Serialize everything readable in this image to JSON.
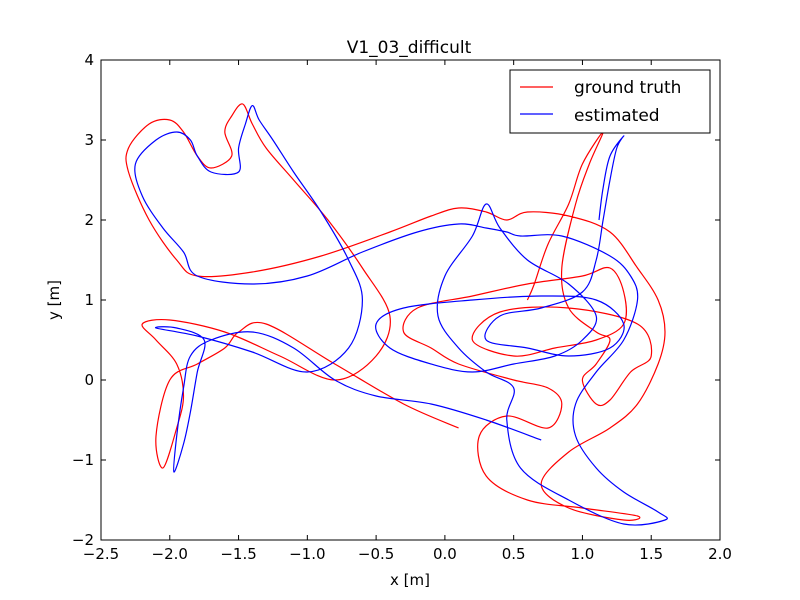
{
  "chart_data": {
    "type": "line",
    "title": "V1_03_difficult",
    "xlabel": "x [m]",
    "ylabel": "y [m]",
    "xlim": [
      -2.5,
      2.0
    ],
    "ylim": [
      -2.0,
      4.0
    ],
    "x_ticks": [
      -2.5,
      -2.0,
      -1.5,
      -1.0,
      -0.5,
      0.0,
      0.5,
      1.0,
      1.5,
      2.0
    ],
    "x_tick_labels": [
      "−2.5",
      "−2.0",
      "−1.5",
      "−1.0",
      "−0.5",
      "0.0",
      "0.5",
      "1.0",
      "1.5",
      "2.0"
    ],
    "y_ticks": [
      -2,
      -1,
      0,
      1,
      2,
      3,
      4
    ],
    "y_tick_labels": [
      "−2",
      "−1",
      "0",
      "1",
      "2",
      "3",
      "4"
    ],
    "grid": false,
    "legend_position": "upper right",
    "series": [
      {
        "name": "ground truth",
        "color": "#ff0000",
        "points": [
          [
            0.1,
            -0.6
          ],
          [
            -0.3,
            -0.3
          ],
          [
            -0.8,
            0.2
          ],
          [
            -1.3,
            0.7
          ],
          [
            -1.5,
            0.6
          ],
          [
            -1.6,
            0.4
          ],
          [
            -1.8,
            0.2
          ],
          [
            -2.0,
            0.0
          ],
          [
            -2.1,
            -0.7
          ],
          [
            -2.05,
            -1.1
          ],
          [
            -1.95,
            -0.6
          ],
          [
            -1.9,
            -0.2
          ],
          [
            -1.95,
            0.2
          ],
          [
            -2.1,
            0.5
          ],
          [
            -2.2,
            0.7
          ],
          [
            -2.0,
            0.75
          ],
          [
            -1.6,
            0.6
          ],
          [
            -1.2,
            0.3
          ],
          [
            -0.8,
            0.0
          ],
          [
            -0.5,
            0.3
          ],
          [
            -0.4,
            0.8
          ],
          [
            -0.6,
            1.4
          ],
          [
            -0.85,
            2.0
          ],
          [
            -1.1,
            2.5
          ],
          [
            -1.3,
            2.9
          ],
          [
            -1.4,
            3.2
          ],
          [
            -1.47,
            3.45
          ],
          [
            -1.55,
            3.3
          ],
          [
            -1.6,
            3.1
          ],
          [
            -1.55,
            2.8
          ],
          [
            -1.7,
            2.65
          ],
          [
            -1.8,
            2.8
          ],
          [
            -1.9,
            3.1
          ],
          [
            -2.0,
            3.25
          ],
          [
            -2.15,
            3.2
          ],
          [
            -2.3,
            2.9
          ],
          [
            -2.3,
            2.6
          ],
          [
            -2.15,
            2.0
          ],
          [
            -1.95,
            1.5
          ],
          [
            -1.8,
            1.3
          ],
          [
            -1.4,
            1.35
          ],
          [
            -0.9,
            1.55
          ],
          [
            -0.4,
            1.85
          ],
          [
            -0.1,
            2.05
          ],
          [
            0.1,
            2.15
          ],
          [
            0.3,
            2.1
          ],
          [
            0.45,
            2.0
          ],
          [
            0.6,
            2.1
          ],
          [
            0.9,
            2.05
          ],
          [
            1.2,
            1.85
          ],
          [
            1.4,
            1.4
          ],
          [
            1.55,
            1.0
          ],
          [
            1.6,
            0.6
          ],
          [
            1.55,
            0.2
          ],
          [
            1.4,
            -0.3
          ],
          [
            1.2,
            -0.6
          ],
          [
            0.9,
            -0.9
          ],
          [
            0.7,
            -1.3
          ],
          [
            0.9,
            -1.6
          ],
          [
            1.3,
            -1.75
          ],
          [
            1.4,
            -1.7
          ],
          [
            1.0,
            -1.6
          ],
          [
            0.6,
            -1.5
          ],
          [
            0.3,
            -1.2
          ],
          [
            0.25,
            -0.7
          ],
          [
            0.45,
            -0.45
          ],
          [
            0.75,
            -0.6
          ],
          [
            0.85,
            -0.3
          ],
          [
            0.75,
            -0.1
          ],
          [
            0.5,
            0.0
          ],
          [
            0.1,
            0.2
          ],
          [
            -0.1,
            0.4
          ],
          [
            -0.3,
            0.6
          ],
          [
            -0.2,
            0.9
          ],
          [
            0.2,
            1.05
          ],
          [
            0.6,
            1.2
          ],
          [
            1.0,
            1.3
          ],
          [
            1.2,
            1.4
          ],
          [
            1.3,
            1.1
          ],
          [
            1.3,
            0.7
          ],
          [
            1.1,
            0.5
          ],
          [
            0.8,
            0.4
          ],
          [
            0.5,
            0.3
          ],
          [
            0.2,
            0.5
          ],
          [
            0.4,
            0.85
          ],
          [
            0.9,
            0.9
          ],
          [
            1.4,
            0.7
          ],
          [
            1.5,
            0.3
          ],
          [
            1.35,
            0.1
          ],
          [
            1.2,
            -0.25
          ],
          [
            1.1,
            -0.3
          ],
          [
            1.0,
            0.0
          ],
          [
            1.1,
            0.2
          ],
          [
            1.2,
            0.5
          ],
          [
            1.1,
            0.6
          ],
          [
            0.9,
            0.9
          ],
          [
            0.85,
            1.4
          ],
          [
            0.95,
            2.2
          ],
          [
            1.05,
            2.7
          ],
          [
            1.15,
            3.1
          ],
          [
            1.0,
            2.7
          ],
          [
            0.9,
            2.2
          ],
          [
            0.75,
            1.7
          ],
          [
            0.65,
            1.2
          ],
          [
            0.6,
            1.0
          ]
        ]
      },
      {
        "name": "estimated",
        "color": "#0000ff",
        "points": [
          [
            0.7,
            -0.75
          ],
          [
            0.3,
            -0.5
          ],
          [
            -0.1,
            -0.3
          ],
          [
            -0.5,
            -0.2
          ],
          [
            -0.8,
            0.0
          ],
          [
            -1.1,
            0.4
          ],
          [
            -1.4,
            0.6
          ],
          [
            -1.7,
            0.5
          ],
          [
            -1.85,
            0.3
          ],
          [
            -1.9,
            -0.1
          ],
          [
            -1.95,
            -0.7
          ],
          [
            -1.97,
            -1.15
          ],
          [
            -1.9,
            -0.8
          ],
          [
            -1.85,
            -0.4
          ],
          [
            -1.8,
            0.1
          ],
          [
            -1.75,
            0.5
          ],
          [
            -1.95,
            0.65
          ],
          [
            -2.1,
            0.65
          ],
          [
            -1.8,
            0.55
          ],
          [
            -1.4,
            0.35
          ],
          [
            -1.0,
            0.1
          ],
          [
            -0.7,
            0.4
          ],
          [
            -0.6,
            1.0
          ],
          [
            -0.7,
            1.5
          ],
          [
            -0.9,
            2.1
          ],
          [
            -1.1,
            2.6
          ],
          [
            -1.25,
            3.0
          ],
          [
            -1.35,
            3.25
          ],
          [
            -1.4,
            3.43
          ],
          [
            -1.45,
            3.2
          ],
          [
            -1.5,
            2.9
          ],
          [
            -1.5,
            2.6
          ],
          [
            -1.7,
            2.6
          ],
          [
            -1.8,
            2.8
          ],
          [
            -1.85,
            3.0
          ],
          [
            -1.95,
            3.1
          ],
          [
            -2.1,
            3.0
          ],
          [
            -2.25,
            2.7
          ],
          [
            -2.2,
            2.3
          ],
          [
            -2.05,
            1.9
          ],
          [
            -1.9,
            1.6
          ],
          [
            -1.8,
            1.3
          ],
          [
            -1.4,
            1.2
          ],
          [
            -1.0,
            1.3
          ],
          [
            -0.6,
            1.6
          ],
          [
            -0.2,
            1.85
          ],
          [
            0.1,
            1.95
          ],
          [
            0.3,
            1.9
          ],
          [
            0.45,
            1.85
          ],
          [
            0.55,
            1.8
          ],
          [
            0.85,
            1.8
          ],
          [
            1.2,
            1.55
          ],
          [
            1.35,
            1.3
          ],
          [
            1.4,
            1.0
          ],
          [
            1.3,
            0.5
          ],
          [
            1.1,
            0.1
          ],
          [
            0.95,
            -0.3
          ],
          [
            0.95,
            -0.7
          ],
          [
            1.1,
            -1.1
          ],
          [
            1.3,
            -1.4
          ],
          [
            1.55,
            -1.65
          ],
          [
            1.6,
            -1.75
          ],
          [
            1.3,
            -1.8
          ],
          [
            0.9,
            -1.5
          ],
          [
            0.55,
            -1.1
          ],
          [
            0.45,
            -0.5
          ],
          [
            0.5,
            -0.1
          ],
          [
            0.3,
            0.1
          ],
          [
            0.1,
            0.4
          ],
          [
            -0.05,
            0.8
          ],
          [
            0.0,
            1.3
          ],
          [
            0.2,
            1.8
          ],
          [
            0.3,
            2.2
          ],
          [
            0.4,
            1.9
          ],
          [
            0.6,
            1.5
          ],
          [
            0.9,
            1.2
          ],
          [
            1.1,
            0.8
          ],
          [
            1.0,
            0.5
          ],
          [
            0.8,
            0.3
          ],
          [
            0.5,
            0.2
          ],
          [
            0.2,
            0.1
          ],
          [
            -0.1,
            0.2
          ],
          [
            -0.4,
            0.4
          ],
          [
            -0.5,
            0.7
          ],
          [
            -0.3,
            0.9
          ],
          [
            0.2,
            1.0
          ],
          [
            0.7,
            1.05
          ],
          [
            1.1,
            1.0
          ],
          [
            1.3,
            0.7
          ],
          [
            1.2,
            0.4
          ],
          [
            0.9,
            0.3
          ],
          [
            0.6,
            0.4
          ],
          [
            0.3,
            0.5
          ],
          [
            0.4,
            0.8
          ],
          [
            0.7,
            0.9
          ],
          [
            1.0,
            1.1
          ],
          [
            1.1,
            1.5
          ],
          [
            1.15,
            2.0
          ],
          [
            1.2,
            2.5
          ],
          [
            1.25,
            2.9
          ],
          [
            1.3,
            3.05
          ],
          [
            1.2,
            2.8
          ],
          [
            1.15,
            2.4
          ],
          [
            1.12,
            2.0
          ]
        ]
      }
    ]
  }
}
